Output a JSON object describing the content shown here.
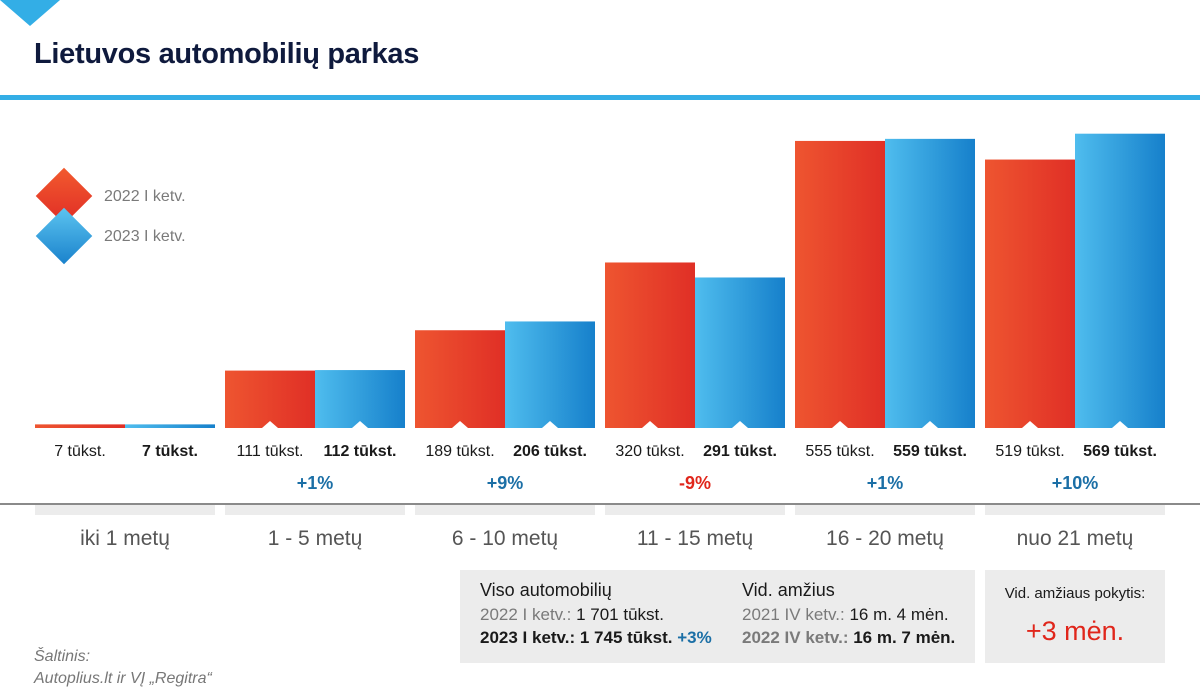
{
  "title": "Lietuvos automobilių parkas",
  "colors": {
    "accent": "#33aee6",
    "series_2022": "#e8432a",
    "series_2023": "#1e8fd6",
    "positive": "#1b6fa6",
    "negative": "#e0261b"
  },
  "chart_data": {
    "type": "bar",
    "categories": [
      "iki 1 metų",
      "1 - 5 metų",
      "6 - 10 metų",
      "11 - 15 metų",
      "16 - 20 metų",
      "nuo 21 metų"
    ],
    "series": [
      {
        "name": "2022 I ketv.",
        "values": [
          7,
          111,
          189,
          320,
          555,
          519
        ]
      },
      {
        "name": "2023 I ketv.",
        "values": [
          7,
          112,
          206,
          291,
          559,
          569
        ]
      }
    ],
    "value_labels_2022": [
      "7 tūkst.",
      "111 tūkst.",
      "189 tūkst.",
      "320 tūkst.",
      "555 tūkst.",
      "519 tūkst."
    ],
    "value_labels_2023": [
      "7 tūkst.",
      "112 tūkst.",
      "206 tūkst.",
      "291 tūkst.",
      "559 tūkst.",
      "569 tūkst."
    ],
    "changes": [
      "",
      "+1%",
      "+9%",
      "-9%",
      "+1%",
      "+10%"
    ],
    "ylim": [
      0,
      580
    ],
    "legend_position": "left"
  },
  "summary": {
    "total_heading": "Viso automobilių",
    "total_2022_label": "2022 I ketv.:",
    "total_2022_value": "1 701 tūkst.",
    "total_2023_label": "2023 I ketv.:",
    "total_2023_value": "1 745 tūkst.",
    "total_change": "+3%",
    "age_heading": "Vid. amžius",
    "age_2021_label": "2021 IV ketv.:",
    "age_2021_value": "16 m. 4 mėn.",
    "age_2022_label": "2022 IV ketv.:",
    "age_2022_value": "16 m. 7 mėn.",
    "change_heading": "Vid. amžiaus pokytis:",
    "change_value": "+3 mėn."
  },
  "source": {
    "line1": "Šaltinis:",
    "line2": "Autoplius.lt ir VĮ „Regitra“"
  }
}
